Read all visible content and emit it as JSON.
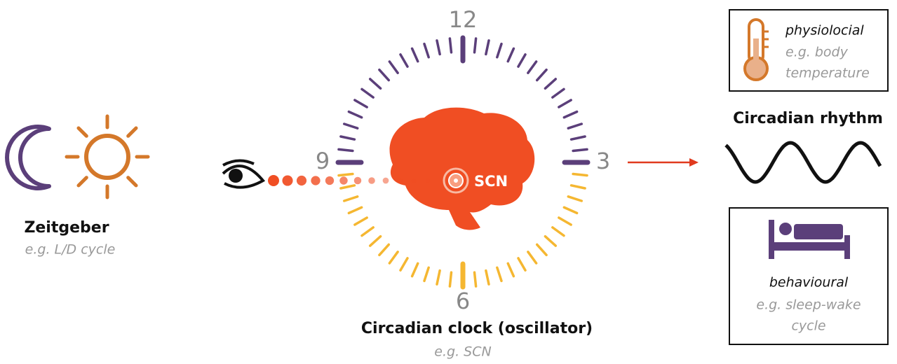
{
  "zeitgeber": {
    "title": "Zeitgeber",
    "example": "e.g. L/D cycle"
  },
  "clock": {
    "numbers": {
      "twelve": "12",
      "three": "3",
      "six": "6",
      "nine": "9"
    },
    "scn_label": "SCN",
    "title": "Circadian clock (oscillator)",
    "example": "e.g. SCN"
  },
  "rhythm": {
    "title": "Circadian rhythm"
  },
  "physiological": {
    "title": "physiolocial",
    "example": [
      "e.g. body",
      "temperature"
    ]
  },
  "behavioural": {
    "title": "behavioural",
    "example": [
      "e.g. sleep-wake",
      "cycle"
    ]
  }
}
